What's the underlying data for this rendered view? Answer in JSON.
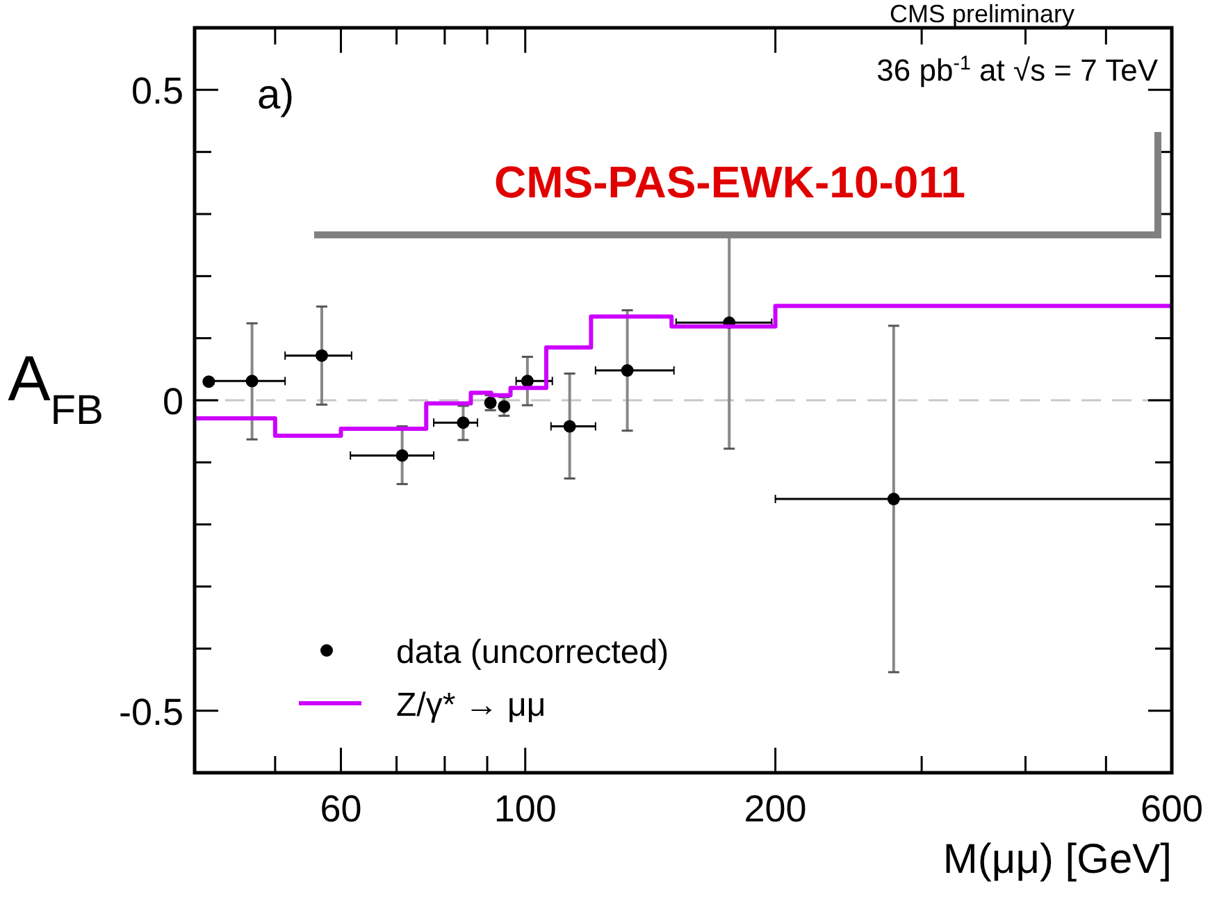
{
  "chart_data": {
    "type": "scatter",
    "xlabel": "M(μμ) [GeV]",
    "ylabel": "A$_{FB}$",
    "log": "x",
    "xlim": [
      40,
      600
    ],
    "ylim": [
      -0.6,
      0.6
    ],
    "xticks": [
      {
        "value": 50,
        "label": null
      },
      {
        "value": 60,
        "label": "60"
      },
      {
        "value": 70,
        "label": null
      },
      {
        "value": 80,
        "label": null
      },
      {
        "value": 90,
        "label": null
      },
      {
        "value": 100,
        "label": "100"
      },
      {
        "value": 200,
        "label": "200"
      },
      {
        "value": 300,
        "label": null
      },
      {
        "value": 400,
        "label": null
      },
      {
        "value": 500,
        "label": null
      },
      {
        "value": 600,
        "label": "600"
      }
    ],
    "yticks": [
      {
        "value": -0.5,
        "label": "-0.5"
      },
      {
        "value": -0.4,
        "label": null
      },
      {
        "value": -0.3,
        "label": null
      },
      {
        "value": -0.2,
        "label": null
      },
      {
        "value": -0.1,
        "label": null
      },
      {
        "value": 0,
        "label": "0"
      },
      {
        "value": 0.1,
        "label": null
      },
      {
        "value": 0.2,
        "label": null
      },
      {
        "value": 0.3,
        "label": null
      },
      {
        "value": 0.4,
        "label": null
      },
      {
        "value": 0.5,
        "label": "0.5"
      }
    ],
    "grid": false,
    "legend": "bottom left",
    "series": [
      {
        "name": "data (uncorrected)",
        "marker": "circle",
        "color": "#000000",
        "x": [
          41.6,
          46.9,
          56.9,
          71.1,
          84.2,
          90.8,
          94.3,
          100.6,
          113.1,
          132.7,
          176,
          277.6
        ],
        "values": [
          0.03,
          0.031,
          0.072,
          -0.089,
          -0.036,
          -0.004,
          -0.01,
          0.031,
          -0.042,
          0.048,
          0.125,
          -0.159
        ],
        "errors": [
          null,
          [
            -0.063,
            0.124
          ],
          [
            -0.007,
            0.151
          ],
          [
            -0.135,
            -0.042
          ],
          [
            -0.064,
            -0.009
          ],
          0.012,
          0.015,
          [
            -0.008,
            0.07
          ],
          [
            -0.126,
            0.043
          ],
          [
            -0.049,
            0.145
          ],
          [
            -0.078,
            0.265
          ],
          [
            -0.438,
            0.12
          ]
        ],
        "xerrors": [
          null,
          [
            41.5,
            51.4
          ],
          [
            51.4,
            61.8
          ],
          [
            61.6,
            77.6
          ],
          [
            77.6,
            87.6
          ],
          null,
          null,
          [
            97.5,
            107.8
          ],
          [
            107.4,
            121.5
          ],
          [
            121.5,
            151
          ],
          [
            151.9,
            198
          ],
          [
            200,
            600
          ]
        ]
      },
      {
        "name": "Z/γ* → μμ",
        "type": "step",
        "color": "#cc00ff",
        "line_style": "solid",
        "x": [
          40,
          50,
          60,
          76,
          86,
          91,
          96,
          106,
          120,
          150,
          200,
          600
        ],
        "values": [
          -0.029,
          -0.057,
          -0.046,
          -0.005,
          0.012,
          0.008,
          0.02,
          0.085,
          0.135,
          0.119,
          0.152,
          0.152
        ]
      }
    ],
    "ref_lines": [
      {
        "axis": "y",
        "value": 0,
        "color": "#c8c8c8",
        "line_style": "dashed"
      }
    ],
    "annotations": [
      "a)",
      "36 pb$^{-1}$  at √s = 7 TeV",
      "CMS preliminary",
      "CMS-PAS-EWK-10-011"
    ]
  }
}
